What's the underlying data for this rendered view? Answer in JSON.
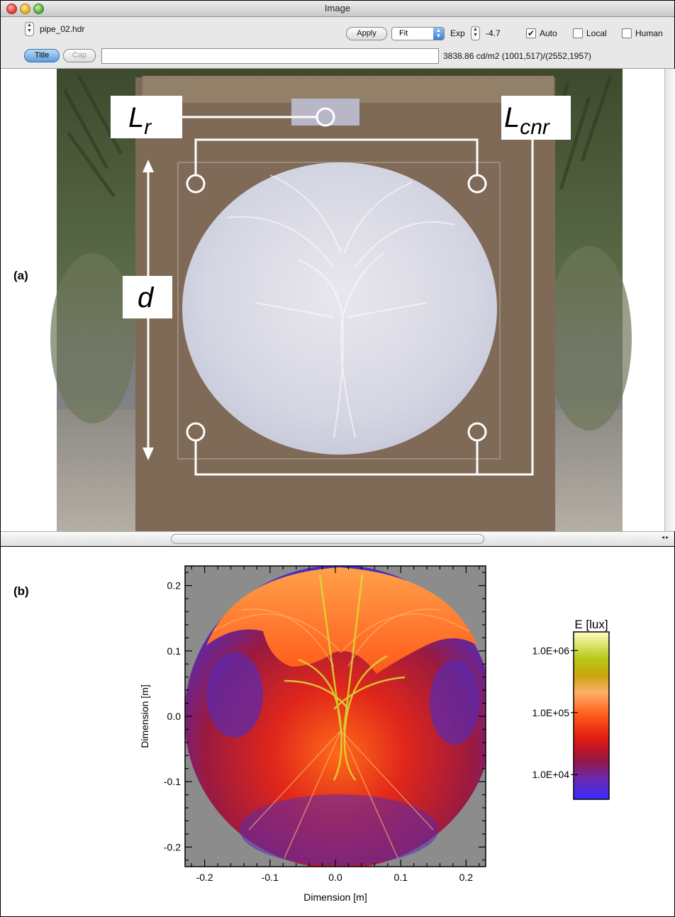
{
  "window": {
    "title": "Image"
  },
  "toolbar": {
    "filename": "pipe_02.hdr",
    "apply_label": "Apply",
    "fit_value": "Fit",
    "exp_label": "Exp",
    "exp_value": "-4.7",
    "auto_label": "Auto",
    "auto_checked": true,
    "local_label": "Local",
    "local_checked": false,
    "human_label": "Human",
    "human_checked": false,
    "title_label": "Title",
    "cap_label": "Cap",
    "caption_value": "",
    "readout": "3838.86 cd/m2 (1001,517)/(2552,1957)"
  },
  "panel_a": {
    "label": "(a)",
    "annotations": {
      "lr_main": "L",
      "lr_sub": "r",
      "lcnr_main": "L",
      "lcnr_sub": "cnr",
      "d": "d"
    }
  },
  "panel_b": {
    "label": "(b)"
  },
  "chart_data": {
    "type": "heatmap",
    "title": "",
    "xlabel": "Dimension [m]",
    "ylabel": "Dimension [m]",
    "xlim": [
      -0.23,
      0.23
    ],
    "ylim": [
      -0.23,
      0.23
    ],
    "xticks": [
      -0.2,
      -0.1,
      0.0,
      0.1,
      0.2
    ],
    "xtick_labels": [
      "-0.2",
      "-0.1",
      "0.0",
      "0.1",
      "0.2"
    ],
    "yticks": [
      0.2,
      0.1,
      0.0,
      -0.1,
      -0.2
    ],
    "ytick_labels": [
      "0.2",
      "0.1",
      "0.0",
      "-0.1",
      "-0.2"
    ],
    "colorbar": {
      "label": "E [lux]",
      "scale": "log",
      "range": [
        4000,
        2000000
      ],
      "ticks": [
        1000000,
        100000,
        10000
      ],
      "tick_labels": [
        "1.0E+06",
        "1.0E+05",
        "1.0E+04"
      ]
    },
    "background_color": "#8c8c8c"
  }
}
